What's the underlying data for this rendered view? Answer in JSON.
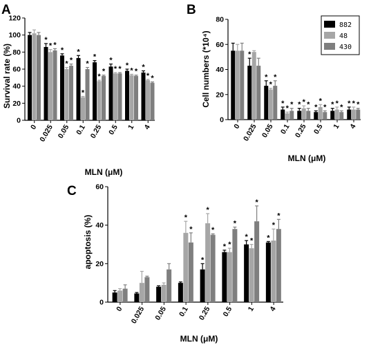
{
  "colors": {
    "s882": "#000000",
    "s48": "#a6a6a6",
    "s430": "#7f7f7f"
  },
  "legend": [
    "882",
    "48",
    "430"
  ],
  "star": "*",
  "chart_data": [
    {
      "panel": "A",
      "type": "bar",
      "ylabel": "Survival rate (%)",
      "xlabel": "MLN (μM)",
      "categories": [
        "0",
        "0.025",
        "0.05",
        "0.1",
        "0.25",
        "0.5",
        "1",
        "4"
      ],
      "ylim": [
        0,
        120
      ],
      "yticks": [
        0,
        20,
        40,
        60,
        80,
        100,
        120
      ],
      "series": [
        {
          "values": [
            100,
            86,
            76,
            73,
            68,
            63,
            58,
            56
          ],
          "errors": [
            3,
            4,
            2,
            3,
            2,
            3,
            2,
            2
          ],
          "sig": [
            false,
            true,
            true,
            true,
            true,
            true,
            true,
            true
          ]
        },
        {
          "values": [
            102,
            80,
            60,
            27,
            46,
            55,
            53,
            47
          ],
          "errors": [
            4,
            3,
            2,
            1,
            1,
            1,
            1,
            1
          ],
          "sig": [
            false,
            true,
            true,
            true,
            true,
            true,
            true,
            true
          ]
        },
        {
          "values": [
            100,
            82,
            64,
            60,
            52,
            55,
            52,
            44
          ],
          "errors": [
            3,
            2,
            2,
            2,
            1,
            1,
            1,
            1
          ],
          "sig": [
            false,
            true,
            true,
            true,
            true,
            true,
            true,
            true
          ]
        }
      ]
    },
    {
      "panel": "B",
      "type": "bar",
      "ylabel": "Cell numbers (*10⁴)",
      "xlabel": "MLN (μM)",
      "categories": [
        "0",
        "0.025",
        "0.05",
        "0.1",
        "0.25",
        "0.5",
        "1",
        "4"
      ],
      "ylim": [
        0,
        80
      ],
      "yticks": [
        0,
        20,
        40,
        60,
        80
      ],
      "legend": "top-right",
      "series": [
        {
          "values": [
            55,
            43,
            27,
            8,
            7,
            6,
            7,
            8
          ],
          "errors": [
            6,
            6,
            4,
            2,
            2,
            1,
            2,
            2
          ],
          "sig": [
            false,
            true,
            true,
            true,
            true,
            true,
            true,
            true
          ]
        },
        {
          "values": [
            55,
            54,
            24,
            5,
            9,
            10,
            8,
            8
          ],
          "errors": [
            5,
            1,
            1,
            1,
            2,
            2,
            2,
            2
          ],
          "sig": [
            false,
            false,
            true,
            true,
            true,
            true,
            true,
            true
          ]
        },
        {
          "values": [
            55,
            43,
            27,
            7,
            7,
            6,
            6,
            8
          ],
          "errors": [
            6,
            6,
            4,
            2,
            2,
            1,
            1,
            1
          ],
          "sig": [
            false,
            false,
            true,
            true,
            true,
            true,
            true,
            true
          ]
        }
      ]
    },
    {
      "panel": "C",
      "type": "bar",
      "ylabel": "apoptosis (%)",
      "xlabel": "MLN (μM)",
      "categories": [
        "0",
        "0.025",
        "0.05",
        "0.1",
        "0.25",
        "0.5",
        "1",
        "4"
      ],
      "ylim": [
        0,
        60
      ],
      "yticks": [
        0,
        20,
        40,
        60
      ],
      "series": [
        {
          "values": [
            5,
            4.5,
            8,
            10,
            17,
            26,
            30,
            31
          ],
          "errors": [
            1,
            0.5,
            0.5,
            0.5,
            3,
            1,
            2,
            0.5
          ],
          "sig": [
            false,
            false,
            false,
            false,
            true,
            true,
            true,
            true
          ]
        },
        {
          "values": [
            6,
            10,
            9,
            36,
            41,
            26,
            28,
            32
          ],
          "errors": [
            1,
            6,
            1,
            6,
            5,
            2,
            2,
            6
          ],
          "sig": [
            false,
            false,
            false,
            true,
            true,
            true,
            true,
            true
          ]
        },
        {
          "values": [
            7,
            13,
            17,
            31,
            35,
            38,
            42,
            38
          ],
          "errors": [
            2,
            0.5,
            3,
            5,
            0.5,
            1,
            8,
            5
          ],
          "sig": [
            false,
            false,
            false,
            true,
            true,
            true,
            true,
            true
          ]
        }
      ]
    }
  ]
}
